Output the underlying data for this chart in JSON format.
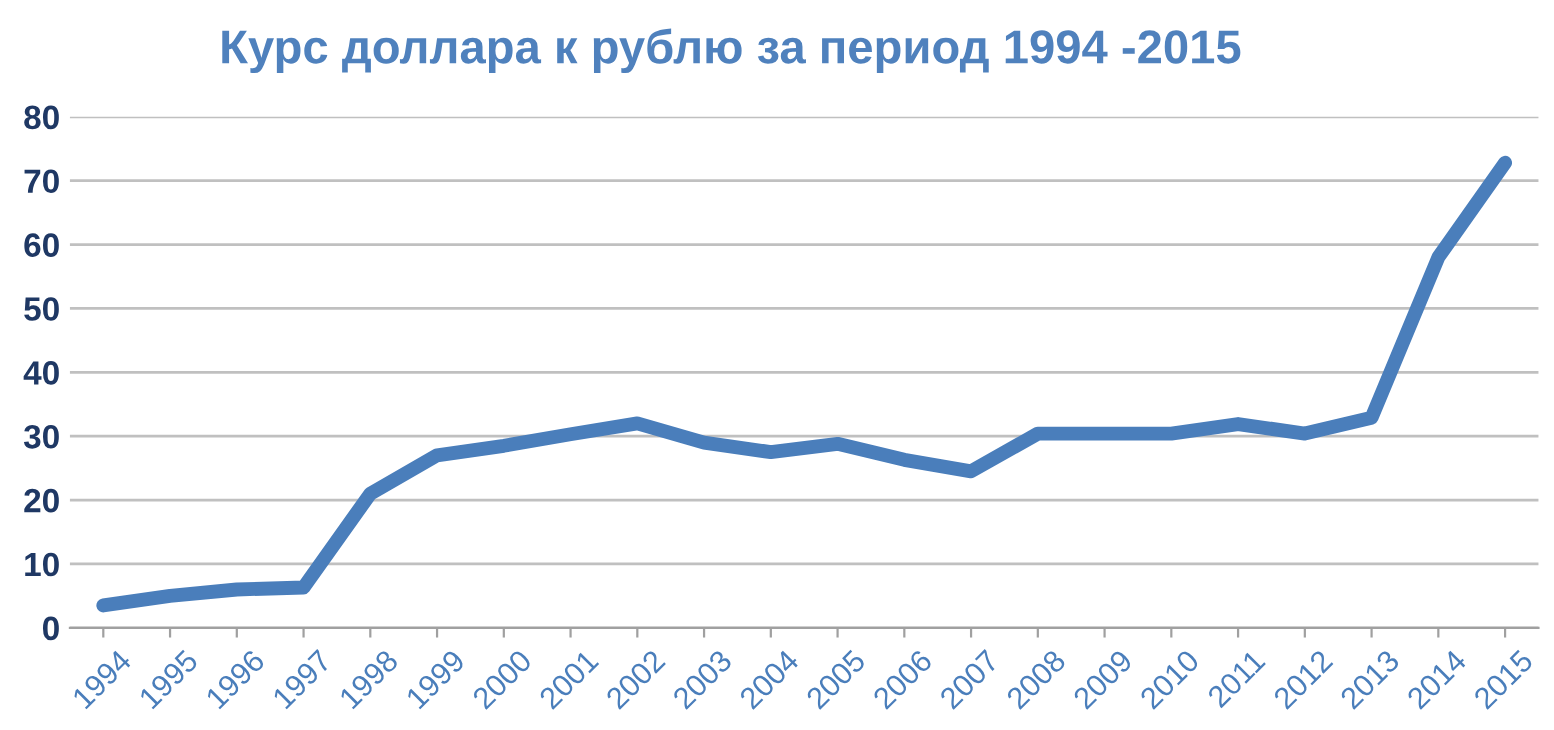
{
  "chart_data": {
    "type": "line",
    "title": "Курс доллара к рублю за период 1994 -2015",
    "categories": [
      "1994",
      "1995",
      "1996",
      "1997",
      "1998",
      "1999",
      "2000",
      "2001",
      "2002",
      "2003",
      "2004",
      "2005",
      "2006",
      "2007",
      "2008",
      "2009",
      "2010",
      "2011",
      "2012",
      "2013",
      "2014",
      "2015"
    ],
    "series": [
      {
        "color": "#4a7ebb",
        "values": [
          3.5,
          5,
          6,
          6.3,
          21,
          27,
          28.5,
          30.3,
          32,
          29,
          27.5,
          28.8,
          26.3,
          24.5,
          30.4,
          30.4,
          30.4,
          31.9,
          30.4,
          32.9,
          58,
          72.8
        ]
      }
    ],
    "ylim": [
      0,
      80
    ],
    "yticks": [
      0,
      10,
      20,
      30,
      40,
      50,
      60,
      70,
      80
    ],
    "grid": "y",
    "marker": "none",
    "line_style": "solid",
    "legend": false
  }
}
